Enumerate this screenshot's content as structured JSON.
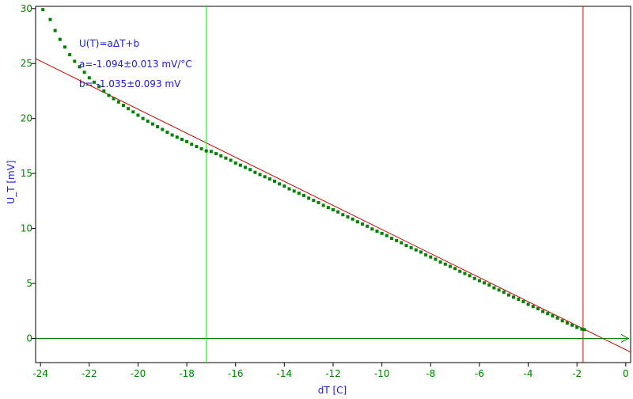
{
  "chart_data": {
    "type": "scatter",
    "xlabel": "dT [C]",
    "ylabel": "U_T [mV]",
    "xlim": [
      -24.2,
      0.2
    ],
    "ylim": [
      -2.2,
      30.2
    ],
    "x_ticks": [
      -24,
      -22,
      -20,
      -18,
      -16,
      -14,
      -12,
      -10,
      -8,
      -6,
      -4,
      -2,
      0
    ],
    "y_ticks": [
      0,
      5,
      10,
      15,
      20,
      25,
      30
    ],
    "grid": false,
    "annotations": [
      "U(T)=aΔT+b",
      "a=-1.094±0.013 mV/°C",
      "b= -1.035±0.093 mV"
    ],
    "fit": {
      "slope": -1.094,
      "intercept": -1.035,
      "color": "#cc0000"
    },
    "cursors": [
      {
        "x": -17.2,
        "color": "#33dd33"
      },
      {
        "x": -1.75,
        "color": "#cc0000"
      }
    ],
    "series": [
      {
        "marker": "square",
        "color": "#008000",
        "x": [
          -23.9,
          -23.6,
          -23.4,
          -23.2,
          -23.0,
          -22.8,
          -22.6,
          -22.4,
          -22.2,
          -22.0,
          -21.8,
          -21.6,
          -21.4,
          -21.2,
          -21.0,
          -20.8,
          -20.6,
          -20.4,
          -20.2,
          -20.0,
          -19.8,
          -19.6,
          -19.4,
          -19.2,
          -19.0,
          -18.8,
          -18.6,
          -18.4,
          -18.2,
          -18.0,
          -17.8,
          -17.6,
          -17.4,
          -17.2,
          -17.0,
          -16.8,
          -16.6,
          -16.4,
          -16.2,
          -16.0,
          -15.8,
          -15.6,
          -15.4,
          -15.2,
          -15.0,
          -14.8,
          -14.6,
          -14.4,
          -14.2,
          -14.0,
          -13.8,
          -13.6,
          -13.4,
          -13.2,
          -13.0,
          -12.8,
          -12.6,
          -12.4,
          -12.2,
          -12.0,
          -11.8,
          -11.6,
          -11.4,
          -11.2,
          -11.0,
          -10.8,
          -10.6,
          -10.4,
          -10.2,
          -10.0,
          -9.8,
          -9.6,
          -9.4,
          -9.2,
          -9.0,
          -8.8,
          -8.6,
          -8.4,
          -8.2,
          -8.0,
          -7.8,
          -7.6,
          -7.4,
          -7.2,
          -7.0,
          -6.8,
          -6.6,
          -6.4,
          -6.2,
          -6.0,
          -5.8,
          -5.6,
          -5.4,
          -5.2,
          -5.0,
          -4.8,
          -4.6,
          -4.4,
          -4.2,
          -4.0,
          -3.8,
          -3.6,
          -3.4,
          -3.2,
          -3.0,
          -2.8,
          -2.6,
          -2.4,
          -2.2,
          -2.0,
          -1.8,
          -1.7
        ],
        "y": [
          29.9,
          29.0,
          28.0,
          27.2,
          26.5,
          25.8,
          25.2,
          24.7,
          24.2,
          23.7,
          23.3,
          22.9,
          22.5,
          22.1,
          21.8,
          21.5,
          21.2,
          20.9,
          20.6,
          20.3,
          20.0,
          19.75,
          19.5,
          19.25,
          19.0,
          18.75,
          18.5,
          18.3,
          18.1,
          17.9,
          17.65,
          17.45,
          17.25,
          17.05,
          17.0,
          16.8,
          16.6,
          16.4,
          16.2,
          15.95,
          15.75,
          15.55,
          15.35,
          15.1,
          14.9,
          14.7,
          14.5,
          14.3,
          14.05,
          13.85,
          13.6,
          13.4,
          13.2,
          13.0,
          12.75,
          12.55,
          12.35,
          12.1,
          11.9,
          11.7,
          11.5,
          11.25,
          11.05,
          10.85,
          10.6,
          10.4,
          10.2,
          9.95,
          9.75,
          9.55,
          9.35,
          9.1,
          8.9,
          8.7,
          8.45,
          8.25,
          8.05,
          7.85,
          7.6,
          7.4,
          7.2,
          6.95,
          6.75,
          6.55,
          6.35,
          6.1,
          5.9,
          5.7,
          5.45,
          5.25,
          5.05,
          4.85,
          4.6,
          4.4,
          4.2,
          3.95,
          3.75,
          3.55,
          3.35,
          3.1,
          2.9,
          2.7,
          2.45,
          2.25,
          2.05,
          1.85,
          1.6,
          1.4,
          1.2,
          1.0,
          0.85,
          0.8
        ]
      }
    ]
  }
}
